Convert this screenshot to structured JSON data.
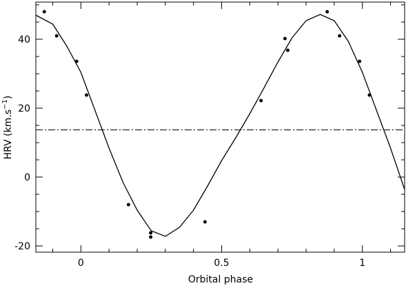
{
  "chart_data": {
    "type": "scatter",
    "xlabel": "Orbital phase",
    "ylabel": [
      "HRV (km.s",
      "−1",
      ")"
    ],
    "x": [
      -0.13,
      -0.086,
      -0.015,
      0.02,
      0.169,
      0.248,
      0.248,
      0.441,
      0.64,
      0.725,
      0.735,
      0.875,
      0.919,
      0.99,
      1.025
    ],
    "values": [
      48.0,
      41.0,
      33.6,
      23.8,
      -8.0,
      -16.2,
      -17.4,
      -13.0,
      22.2,
      40.2,
      36.8,
      48.0,
      41.0,
      33.6,
      23.8
    ],
    "color": "#000000",
    "fit": {
      "x": [
        -0.16,
        -0.1,
        -0.05,
        0,
        0.05,
        0.1,
        0.15,
        0.2,
        0.25,
        0.3,
        0.35,
        0.4,
        0.45,
        0.5,
        0.55,
        0.6,
        0.65,
        0.7,
        0.75,
        0.8,
        0.85,
        0.9,
        0.95,
        1.0,
        1.05,
        1.1,
        1.15
      ],
      "values": [
        47.0,
        44.4,
        38.0,
        30.4,
        19.4,
        8.4,
        -1.6,
        -9.6,
        -15.6,
        -17.2,
        -14.6,
        -9.6,
        -2.6,
        4.8,
        11.4,
        18.4,
        25.8,
        33.4,
        40.4,
        45.4,
        47.2,
        45.4,
        39.4,
        30.4,
        19.4,
        8.4,
        -3.6
      ]
    },
    "systemic_velocity": 13.7,
    "xlim": [
      -0.16,
      1.15
    ],
    "ylim": [
      -21.8,
      50.8
    ],
    "xticks": [
      0,
      0.5,
      1
    ],
    "yticks": [
      -20,
      0,
      20,
      40
    ],
    "xminor_ticks": [
      -0.1,
      0.1,
      0.2,
      0.3,
      0.4,
      0.6,
      0.7,
      0.8,
      0.9,
      1.1
    ],
    "yminor_ticks": [
      -15,
      -10,
      -5,
      5,
      10,
      15,
      25,
      30,
      35,
      45,
      50
    ]
  }
}
